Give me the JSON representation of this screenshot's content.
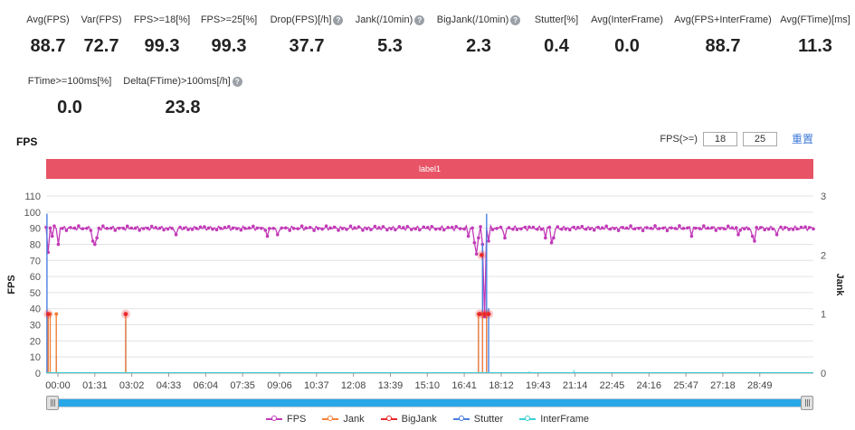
{
  "metrics_row1": [
    {
      "label": "Avg(FPS)",
      "value": "88.7",
      "help": false
    },
    {
      "label": "Var(FPS)",
      "value": "72.7",
      "help": false
    },
    {
      "label": "FPS>=18[%]",
      "value": "99.3",
      "help": false
    },
    {
      "label": "FPS>=25[%]",
      "value": "99.3",
      "help": false
    },
    {
      "label": "Drop(FPS)[/h]",
      "value": "37.7",
      "help": true
    },
    {
      "label": "Jank(/10min)",
      "value": "5.3",
      "help": true
    },
    {
      "label": "BigJank(/10min)",
      "value": "2.3",
      "help": true
    },
    {
      "label": "Stutter[%]",
      "value": "0.4",
      "help": false
    },
    {
      "label": "Avg(InterFrame)",
      "value": "0.0",
      "help": false
    },
    {
      "label": "Avg(FPS+InterFrame)",
      "value": "88.7",
      "help": false
    },
    {
      "label": "Avg(FTime)[ms]",
      "value": "11.3",
      "help": false
    }
  ],
  "metrics_row2": [
    {
      "label": "FTime>=100ms[%]",
      "value": "0.0",
      "help": false
    },
    {
      "label": "Delta(FTime)>100ms[/h]",
      "value": "23.8",
      "help": true
    }
  ],
  "help_glyph": "?",
  "chart_title": "FPS",
  "fps_threshold": {
    "label": "FPS(>=)",
    "value1": "18",
    "value2": "25",
    "reset_label": "重置"
  },
  "label_bar": "label1",
  "colors": {
    "fps": "#c23ab8",
    "jank": "#f5813a",
    "bigjank": "#e8282e",
    "stutter": "#4a7fe0",
    "interframe": "#3bcfd4",
    "label_bar": "#e85466"
  },
  "chart_data": {
    "type": "line",
    "title": "FPS",
    "xlabel": "",
    "ylabel_left": "FPS",
    "ylabel_right": "Jank",
    "ylim_left": [
      0,
      110
    ],
    "ylim_right": [
      0,
      3
    ],
    "yticks_left": [
      0,
      10,
      20,
      30,
      40,
      50,
      60,
      70,
      80,
      90,
      100,
      110
    ],
    "yticks_right": [
      0,
      1,
      2,
      3
    ],
    "xlim_seconds": [
      0,
      1890
    ],
    "x_tick_labels": [
      "00:00",
      "01:31",
      "03:02",
      "04:33",
      "06:04",
      "07:35",
      "09:06",
      "10:37",
      "12:08",
      "13:39",
      "15:10",
      "16:41",
      "18:12",
      "19:43",
      "21:14",
      "22:45",
      "24:16",
      "25:47",
      "27:18",
      "28:49"
    ],
    "series": [
      {
        "name": "FPS",
        "axis": "left",
        "baseline": 90,
        "dips": [
          {
            "t": 2,
            "v": 60
          },
          {
            "t": 5,
            "v": 75
          },
          {
            "t": 15,
            "v": 85
          },
          {
            "t": 30,
            "v": 80
          },
          {
            "t": 115,
            "v": 82
          },
          {
            "t": 120,
            "v": 80
          },
          {
            "t": 125,
            "v": 84
          },
          {
            "t": 196,
            "v": 71
          },
          {
            "t": 320,
            "v": 86
          },
          {
            "t": 545,
            "v": 85
          },
          {
            "t": 570,
            "v": 86
          },
          {
            "t": 1040,
            "v": 85
          },
          {
            "t": 1055,
            "v": 81
          },
          {
            "t": 1060,
            "v": 74
          },
          {
            "t": 1065,
            "v": 84
          },
          {
            "t": 1075,
            "v": 80
          },
          {
            "t": 1080,
            "v": 35
          },
          {
            "t": 1090,
            "v": 82
          },
          {
            "t": 1130,
            "v": 84
          },
          {
            "t": 1230,
            "v": 84
          },
          {
            "t": 1245,
            "v": 81
          },
          {
            "t": 1250,
            "v": 84
          },
          {
            "t": 1590,
            "v": 85
          },
          {
            "t": 1705,
            "v": 86
          },
          {
            "t": 1740,
            "v": 85
          },
          {
            "t": 1745,
            "v": 82
          },
          {
            "t": 1800,
            "v": 86
          }
        ]
      },
      {
        "name": "Jank",
        "axis": "right",
        "points": [
          {
            "t": 5,
            "v": 1
          },
          {
            "t": 10,
            "v": 1
          },
          {
            "t": 25,
            "v": 1
          },
          {
            "t": 196,
            "v": 1
          },
          {
            "t": 1065,
            "v": 1
          },
          {
            "t": 1075,
            "v": 1
          },
          {
            "t": 1085,
            "v": 1
          }
        ]
      },
      {
        "name": "BigJank",
        "axis": "right",
        "points": [
          {
            "t": 5,
            "v": 1
          },
          {
            "t": 196,
            "v": 1
          },
          {
            "t": 1073,
            "v": 2
          },
          {
            "t": 1068,
            "v": 1
          },
          {
            "t": 1080,
            "v": 1
          },
          {
            "t": 1090,
            "v": 1
          }
        ]
      },
      {
        "name": "Stutter",
        "axis": "right",
        "points": [
          {
            "t": 2,
            "v": 2.7
          },
          {
            "t": 5,
            "v": 1
          },
          {
            "t": 25,
            "v": 0.3
          },
          {
            "t": 196,
            "v": 0.9
          },
          {
            "t": 1065,
            "v": 0.9
          },
          {
            "t": 1075,
            "v": 2.2
          },
          {
            "t": 1085,
            "v": 2.7
          },
          {
            "t": 1090,
            "v": 1.1
          }
        ]
      },
      {
        "name": "InterFrame",
        "axis": "right",
        "points": [
          {
            "t": 1190,
            "v": 0.03
          },
          {
            "t": 1300,
            "v": 0.05
          }
        ]
      }
    ]
  },
  "legend": [
    {
      "name": "FPS",
      "color_key": "fps"
    },
    {
      "name": "Jank",
      "color_key": "jank"
    },
    {
      "name": "BigJank",
      "color_key": "bigjank"
    },
    {
      "name": "Stutter",
      "color_key": "stutter"
    },
    {
      "name": "InterFrame",
      "color_key": "interframe"
    }
  ]
}
